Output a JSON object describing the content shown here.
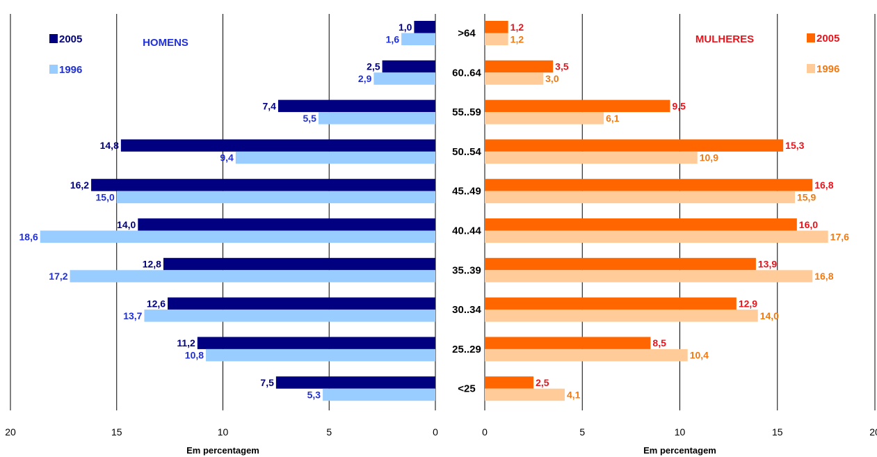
{
  "chart_data": {
    "type": "bar",
    "orientation": "horizontal",
    "layout": "population-pyramid",
    "categories": [
      ">64",
      "60..64",
      "55..59",
      "50..54",
      "45..49",
      "40..44",
      "35..39",
      "30..34",
      "25..29",
      "<25"
    ],
    "xlim": [
      0,
      20
    ],
    "xticks": [
      "0",
      "5",
      "10",
      "15",
      "20"
    ],
    "grid": true,
    "panels": [
      {
        "title": "HOMENS",
        "direction": "left",
        "xlabel": "Em percentagem",
        "legend": "top-left",
        "series": [
          {
            "name": "2005",
            "color": "#000080",
            "label_color": "#000080",
            "values": [
              1.0,
              2.5,
              7.4,
              14.8,
              16.2,
              14.0,
              12.8,
              12.6,
              11.2,
              7.5
            ],
            "labels": [
              "1,0",
              "2,5",
              "7,4",
              "14,8",
              "16,2",
              "14,0",
              "12,8",
              "12,6",
              "11,2",
              "7,5"
            ]
          },
          {
            "name": "1996",
            "color": "#99ccff",
            "label_color": "#1f2fd9",
            "values": [
              1.6,
              2.9,
              5.5,
              9.4,
              15.0,
              18.6,
              17.2,
              13.7,
              10.8,
              5.3
            ],
            "labels": [
              "1,6",
              "2,9",
              "5,5",
              "9,4",
              "15,0",
              "18,6",
              "17,2",
              "13,7",
              "10,8",
              "5,3"
            ]
          }
        ]
      },
      {
        "title": "MULHERES",
        "direction": "right",
        "xlabel": "Em percentagem",
        "legend": "top-right",
        "series": [
          {
            "name": "2005",
            "color": "#ff6600",
            "label_color": "#e8141c",
            "values": [
              1.2,
              3.5,
              9.5,
              15.3,
              16.8,
              16.0,
              13.9,
              12.9,
              8.5,
              2.5
            ],
            "labels": [
              "1,2",
              "3,5",
              "9,5",
              "15,3",
              "16,8",
              "16,0",
              "13,9",
              "12,9",
              "8,5",
              "2,5"
            ]
          },
          {
            "name": "1996",
            "color": "#ffcc99",
            "label_color": "#f07a12",
            "values": [
              1.2,
              3.0,
              6.1,
              10.9,
              15.9,
              17.6,
              16.8,
              14.0,
              10.4,
              4.1
            ],
            "labels": [
              "1,2",
              "3,0",
              "6,1",
              "10,9",
              "15,9",
              "17,6",
              "16,8",
              "14,0",
              "10,4",
              "4,1"
            ]
          }
        ]
      }
    ]
  }
}
